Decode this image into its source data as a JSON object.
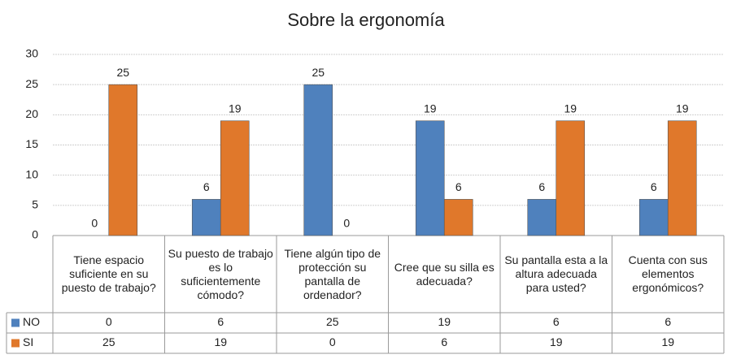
{
  "chart_data": {
    "type": "bar",
    "title": "Sobre la ergonomía",
    "categories": [
      "Tiene espacio suficiente en su puesto de trabajo?",
      "Su puesto de trabajo es lo suficientemente cómodo?",
      "Tiene algún tipo de protección su pantalla de ordenador?",
      "Cree que su silla es adecuada?",
      "Su pantalla esta a la altura adecuada para usted?",
      "Cuenta con sus elementos ergonómicos?"
    ],
    "series": [
      {
        "name": "NO",
        "color": "#4f81bd",
        "values": [
          0,
          6,
          25,
          19,
          6,
          6
        ]
      },
      {
        "name": "SI",
        "color": "#e0782b",
        "values": [
          25,
          19,
          0,
          6,
          19,
          19
        ]
      }
    ],
    "ylim": [
      0,
      30
    ],
    "yticks": [
      0,
      5,
      10,
      15,
      20,
      25,
      30
    ],
    "grid": true,
    "data_table": true
  }
}
